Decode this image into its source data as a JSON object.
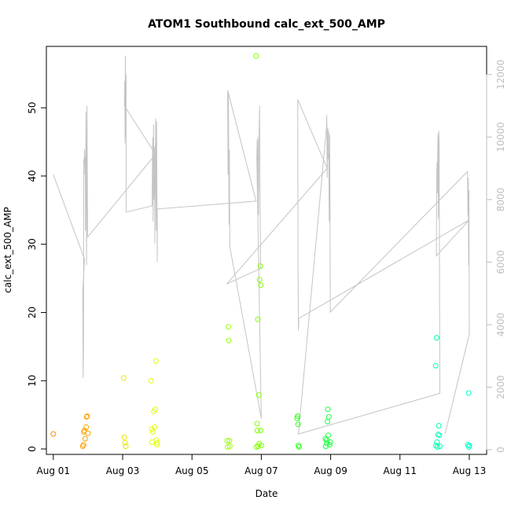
{
  "chart_data": {
    "type": "scatter",
    "title": "ATOM1 Southbound calc_ext_500_AMP",
    "xlabel": "Date",
    "ylabel": "calc_ext_500_AMP",
    "x_ticks": [
      "Aug 01",
      "Aug 03",
      "Aug 05",
      "Aug 07",
      "Aug 09",
      "Aug 11",
      "Aug 13"
    ],
    "x_tick_days": [
      1,
      3,
      5,
      7,
      9,
      11,
      13
    ],
    "xlim": [
      0.8,
      13.5
    ],
    "ylim": [
      -0.8,
      59
    ],
    "y_ticks": [
      0,
      10,
      20,
      30,
      40,
      50
    ],
    "y2lim": [
      -150,
      12900
    ],
    "y2_ticks": [
      0,
      2000,
      4000,
      6000,
      8000,
      10000,
      12000
    ],
    "grid": false,
    "points": [
      {
        "x": 1.0,
        "y": 2.2,
        "color": "#ff8c00"
      },
      {
        "x": 1.85,
        "y": 0.4,
        "color": "#ff9e00"
      },
      {
        "x": 1.87,
        "y": 0.6,
        "color": "#ff9e00"
      },
      {
        "x": 1.88,
        "y": 2.5,
        "color": "#ff9e00"
      },
      {
        "x": 1.9,
        "y": 2.7,
        "color": "#ffa300"
      },
      {
        "x": 1.92,
        "y": 1.5,
        "color": "#ffa300"
      },
      {
        "x": 1.95,
        "y": 3.2,
        "color": "#ffa300"
      },
      {
        "x": 1.96,
        "y": 4.7,
        "color": "#ffa300"
      },
      {
        "x": 1.98,
        "y": 4.8,
        "color": "#ffa300"
      },
      {
        "x": 2.0,
        "y": 2.3,
        "color": "#ffa300"
      },
      {
        "x": 3.03,
        "y": 10.4,
        "color": "#e9e600"
      },
      {
        "x": 3.05,
        "y": 1.7,
        "color": "#e9e600"
      },
      {
        "x": 3.07,
        "y": 0.9,
        "color": "#e9e600"
      },
      {
        "x": 3.09,
        "y": 0.4,
        "color": "#e9e600"
      },
      {
        "x": 3.82,
        "y": 10.0,
        "color": "#e4ff00"
      },
      {
        "x": 3.84,
        "y": 2.9,
        "color": "#e4ff00"
      },
      {
        "x": 3.85,
        "y": 1.0,
        "color": "#e4ff00"
      },
      {
        "x": 3.87,
        "y": 2.5,
        "color": "#e4ff00"
      },
      {
        "x": 3.9,
        "y": 5.5,
        "color": "#e4ff00"
      },
      {
        "x": 3.92,
        "y": 3.2,
        "color": "#e4ff00"
      },
      {
        "x": 3.94,
        "y": 5.8,
        "color": "#e4ff00"
      },
      {
        "x": 3.96,
        "y": 12.9,
        "color": "#e4ff00"
      },
      {
        "x": 3.97,
        "y": 1.3,
        "color": "#e4ff00"
      },
      {
        "x": 3.99,
        "y": 0.6,
        "color": "#e4ff00"
      },
      {
        "x": 4.0,
        "y": 0.9,
        "color": "#e4ff00"
      },
      {
        "x": 6.02,
        "y": 1.2,
        "color": "#9aff00"
      },
      {
        "x": 6.03,
        "y": 0.3,
        "color": "#9aff00"
      },
      {
        "x": 6.05,
        "y": 17.9,
        "color": "#9aff00"
      },
      {
        "x": 6.06,
        "y": 15.9,
        "color": "#9aff00"
      },
      {
        "x": 6.08,
        "y": 1.2,
        "color": "#9aff00"
      },
      {
        "x": 6.09,
        "y": 0.4,
        "color": "#9aff00"
      },
      {
        "x": 6.85,
        "y": 57.6,
        "color": "#80ff00"
      },
      {
        "x": 6.86,
        "y": 0.3,
        "color": "#80ff00"
      },
      {
        "x": 6.88,
        "y": 3.7,
        "color": "#80ff00"
      },
      {
        "x": 6.89,
        "y": 2.7,
        "color": "#80ff00"
      },
      {
        "x": 6.9,
        "y": 19.0,
        "color": "#80ff00"
      },
      {
        "x": 6.91,
        "y": 0.4,
        "color": "#80ff00"
      },
      {
        "x": 6.93,
        "y": 7.9,
        "color": "#80ff00"
      },
      {
        "x": 6.94,
        "y": 0.8,
        "color": "#80ff00"
      },
      {
        "x": 6.95,
        "y": 24.8,
        "color": "#80ff00"
      },
      {
        "x": 6.97,
        "y": 26.8,
        "color": "#80ff00"
      },
      {
        "x": 6.98,
        "y": 2.7,
        "color": "#80ff00"
      },
      {
        "x": 6.99,
        "y": 24.0,
        "color": "#80ff00"
      },
      {
        "x": 7.0,
        "y": 0.5,
        "color": "#80ff00"
      },
      {
        "x": 8.03,
        "y": 4.5,
        "color": "#2cff18"
      },
      {
        "x": 8.05,
        "y": 4.8,
        "color": "#2cff18"
      },
      {
        "x": 8.06,
        "y": 3.6,
        "color": "#2cff18"
      },
      {
        "x": 8.07,
        "y": 0.5,
        "color": "#2cff18"
      },
      {
        "x": 8.09,
        "y": 0.3,
        "color": "#2cff18"
      },
      {
        "x": 8.85,
        "y": 1.5,
        "color": "#17ff3c"
      },
      {
        "x": 8.86,
        "y": 0.4,
        "color": "#17ff3c"
      },
      {
        "x": 8.88,
        "y": 1.3,
        "color": "#17ff3c"
      },
      {
        "x": 8.89,
        "y": 0.8,
        "color": "#17ff3c"
      },
      {
        "x": 8.91,
        "y": 4.0,
        "color": "#17ff3c"
      },
      {
        "x": 8.92,
        "y": 5.8,
        "color": "#17ff3c"
      },
      {
        "x": 8.93,
        "y": 2.0,
        "color": "#17ff3c"
      },
      {
        "x": 8.95,
        "y": 4.7,
        "color": "#17ff3c"
      },
      {
        "x": 8.97,
        "y": 0.6,
        "color": "#17ff3c"
      },
      {
        "x": 8.99,
        "y": 1.0,
        "color": "#17ff3c"
      },
      {
        "x": 12.03,
        "y": 12.2,
        "color": "#00ffae"
      },
      {
        "x": 12.04,
        "y": 0.5,
        "color": "#00ffae"
      },
      {
        "x": 12.06,
        "y": 16.3,
        "color": "#00ffae"
      },
      {
        "x": 12.07,
        "y": 1.0,
        "color": "#00ffae"
      },
      {
        "x": 12.08,
        "y": 0.3,
        "color": "#00ffae"
      },
      {
        "x": 12.1,
        "y": 2.1,
        "color": "#00ffb4"
      },
      {
        "x": 12.12,
        "y": 3.4,
        "color": "#00ffb4"
      },
      {
        "x": 12.14,
        "y": 2.0,
        "color": "#00ffb4"
      },
      {
        "x": 12.15,
        "y": 0.4,
        "color": "#00ffb4"
      },
      {
        "x": 12.96,
        "y": 0.6,
        "color": "#00ffc8"
      },
      {
        "x": 12.98,
        "y": 8.2,
        "color": "#00ffc8"
      },
      {
        "x": 12.99,
        "y": 0.3,
        "color": "#00ffc8"
      },
      {
        "x": 13.0,
        "y": 0.5,
        "color": "#00ffc8"
      }
    ],
    "trace": [
      [
        1.0,
        8800
      ],
      [
        1.9,
        6100
      ],
      [
        1.85,
        5100
      ],
      [
        1.86,
        2300
      ],
      [
        1.87,
        3300
      ],
      [
        1.88,
        9300
      ],
      [
        1.89,
        8800
      ],
      [
        1.9,
        9600
      ],
      [
        1.91,
        9100
      ],
      [
        1.92,
        9400
      ],
      [
        1.93,
        7000
      ],
      [
        1.94,
        10800
      ],
      [
        1.95,
        8000
      ],
      [
        1.96,
        5900
      ],
      [
        1.97,
        11000
      ],
      [
        1.99,
        6800
      ],
      [
        3.95,
        9450
      ],
      [
        3.05,
        11000
      ],
      [
        3.06,
        11800
      ],
      [
        3.07,
        9800
      ],
      [
        3.08,
        12600
      ],
      [
        3.09,
        10000
      ],
      [
        3.1,
        12000
      ],
      [
        3.1,
        7600
      ],
      [
        3.85,
        7800
      ],
      [
        3.86,
        9300
      ],
      [
        3.87,
        10000
      ],
      [
        3.88,
        7300
      ],
      [
        3.89,
        10400
      ],
      [
        3.9,
        8000
      ],
      [
        3.92,
        9700
      ],
      [
        3.93,
        6600
      ],
      [
        3.95,
        10600
      ],
      [
        3.97,
        7000
      ],
      [
        3.98,
        10500
      ],
      [
        4.0,
        6000
      ],
      [
        4.0,
        7700
      ],
      [
        6.85,
        7950
      ],
      [
        6.03,
        11500
      ],
      [
        6.04,
        8800
      ],
      [
        6.05,
        11400
      ],
      [
        6.07,
        7200
      ],
      [
        6.08,
        9600
      ],
      [
        6.09,
        6500
      ],
      [
        7.0,
        1000
      ],
      [
        6.87,
        9300
      ],
      [
        6.88,
        9900
      ],
      [
        6.89,
        8300
      ],
      [
        6.9,
        10000
      ],
      [
        6.92,
        7500
      ],
      [
        6.93,
        9600
      ],
      [
        6.95,
        11000
      ],
      [
        6.96,
        8400
      ],
      [
        6.97,
        7100
      ],
      [
        6.98,
        5800
      ],
      [
        6.0,
        5300
      ],
      [
        8.9,
        9000
      ],
      [
        8.05,
        11200
      ],
      [
        8.06,
        5800
      ],
      [
        8.07,
        3800
      ],
      [
        8.08,
        4200
      ],
      [
        13.0,
        7350
      ],
      [
        12.05,
        6200
      ],
      [
        12.06,
        8700
      ],
      [
        12.07,
        9200
      ],
      [
        12.08,
        8200
      ],
      [
        12.09,
        9700
      ],
      [
        12.1,
        10100
      ],
      [
        12.11,
        7400
      ],
      [
        12.12,
        10200
      ],
      [
        12.13,
        9800
      ],
      [
        12.14,
        6300
      ],
      [
        12.15,
        1800
      ],
      [
        8.07,
        500
      ],
      [
        8.88,
        10300
      ],
      [
        8.89,
        10700
      ],
      [
        8.9,
        8700
      ],
      [
        8.92,
        10300
      ],
      [
        8.93,
        9300
      ],
      [
        8.94,
        10200
      ],
      [
        8.96,
        7300
      ],
      [
        8.97,
        10100
      ],
      [
        8.98,
        8600
      ],
      [
        8.99,
        4400
      ],
      [
        12.95,
        8900
      ],
      [
        12.96,
        7500
      ],
      [
        12.97,
        8700
      ],
      [
        12.98,
        5900
      ],
      [
        12.99,
        8300
      ],
      [
        13.0,
        3700
      ],
      [
        12.3,
        500
      ]
    ]
  }
}
